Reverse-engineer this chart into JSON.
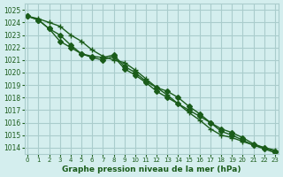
{
  "title": "Graphe pression niveau de la mer (hPa)",
  "bg_color": "#d4eeee",
  "grid_color": "#aacccc",
  "line_color": "#1a5c1a",
  "xlim": [
    0,
    23
  ],
  "ylim": [
    1013.5,
    1025.5
  ],
  "yticks": [
    1014,
    1015,
    1016,
    1017,
    1018,
    1019,
    1020,
    1021,
    1022,
    1023,
    1024,
    1025
  ],
  "xticks": [
    0,
    1,
    2,
    3,
    4,
    5,
    6,
    7,
    8,
    9,
    10,
    11,
    12,
    13,
    14,
    15,
    16,
    17,
    18,
    19,
    20,
    21,
    22,
    23
  ],
  "series": [
    [
      1024.5,
      1024.3,
      1024.0,
      1023.7,
      1023.0,
      1022.5,
      1021.8,
      1021.3,
      1021.0,
      1020.8,
      1020.2,
      1019.5,
      1018.8,
      1018.2,
      1017.5,
      1016.8,
      1016.2,
      1015.5,
      1015.0,
      1014.8,
      1014.5,
      1014.2,
      1014.0,
      1013.8
    ],
    [
      1024.5,
      1024.2,
      1023.5,
      1023.0,
      1022.2,
      1021.5,
      1021.3,
      1021.2,
      1021.4,
      1020.5,
      1020.0,
      1019.3,
      1018.8,
      1018.5,
      1018.0,
      1017.3,
      1016.7,
      1016.0,
      1015.3,
      1015.0,
      1014.6,
      1014.2,
      1013.9,
      1013.6
    ],
    [
      1024.5,
      1024.2,
      1023.5,
      1022.5,
      1022.0,
      1021.5,
      1021.2,
      1021.0,
      1021.3,
      1020.3,
      1019.8,
      1019.2,
      1018.5,
      1018.0,
      1017.5,
      1017.0,
      1016.5,
      1016.0,
      1015.5,
      1015.2,
      1014.8,
      1014.3,
      1014.0,
      1013.7
    ]
  ],
  "markers": [
    "+",
    "D",
    "D"
  ],
  "markersizes": [
    5,
    3,
    3
  ],
  "linewidths": [
    1.0,
    1.0,
    1.0
  ]
}
